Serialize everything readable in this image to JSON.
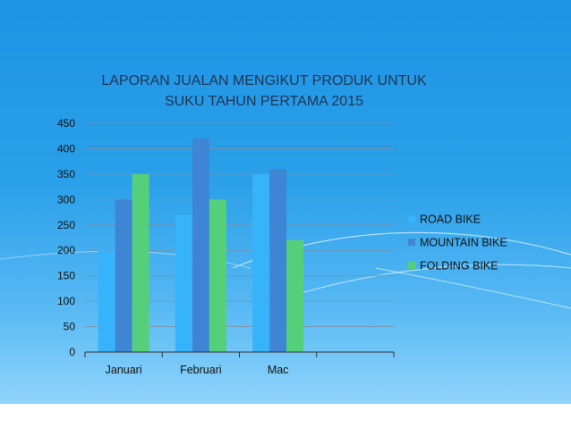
{
  "slide": {
    "colors": {
      "panel_top": "#1f93e4",
      "panel_bottom": "#8fd4fb",
      "footer": "#ffffff"
    }
  },
  "chart_data": {
    "type": "bar",
    "title_lines": [
      "LAPORAN JUALAN MENGIKUT PRODUK UNTUK",
      "SUKU TAHUN PERTAMA 2015"
    ],
    "categories": [
      "Januari",
      "Februari",
      "Mac",
      ""
    ],
    "series": [
      {
        "name": "ROAD BIKE",
        "color": "#36b3fb",
        "values": [
          200,
          270,
          350,
          null
        ]
      },
      {
        "name": "MOUNTAIN BIKE",
        "color": "#3e86d4",
        "values": [
          300,
          420,
          360,
          null
        ]
      },
      {
        "name": "FOLDING BIKE",
        "color": "#55d07a",
        "values": [
          350,
          300,
          220,
          null
        ]
      }
    ],
    "ylim": [
      0,
      450
    ],
    "yticks": [
      "0",
      "50",
      "100",
      "150",
      "200",
      "250",
      "300",
      "350",
      "400",
      "450"
    ],
    "grid": true,
    "legend_position": "right"
  }
}
